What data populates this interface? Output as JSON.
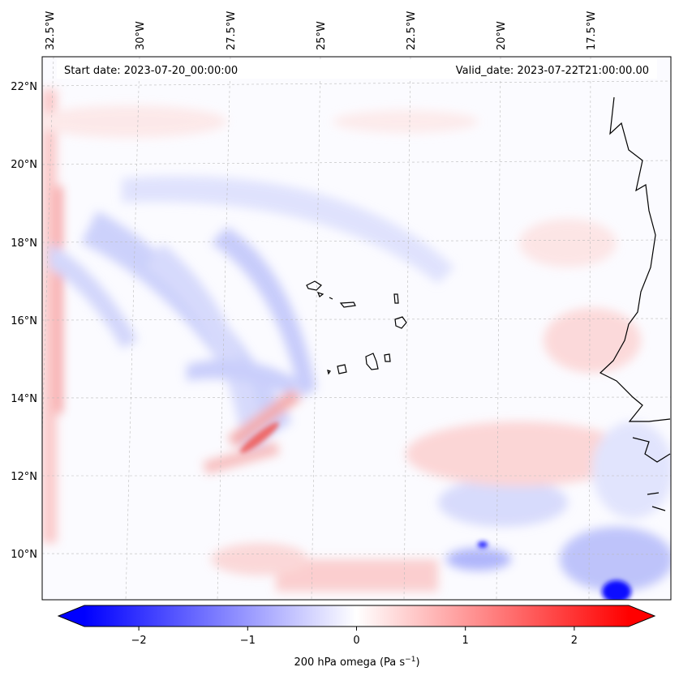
{
  "map": {
    "variable_label": "200 hPa omega (Pa s",
    "units_superscript": "−1",
    "units_close": ")",
    "start_date": "Start date: 2023-07-20_00:00:00",
    "valid_date": "Valid_date: 2023-07-22T21:00:00.00",
    "longitude_labels": [
      "32.5°W",
      "30°W",
      "27.5°W",
      "25°W",
      "22.5°W",
      "20°W",
      "17.5°W"
    ],
    "latitude_labels": [
      "22°N",
      "20°N",
      "18°N",
      "16°N",
      "14°N",
      "12°N",
      "10°N"
    ],
    "colorbar_ticks": [
      "−2",
      "−1",
      "0",
      "1",
      "2"
    ],
    "colorbar_values": [
      -2,
      -1,
      0,
      1,
      2
    ],
    "colorbar_range": [
      -2.5,
      2.5
    ],
    "colormap": {
      "negative": "#0000ff",
      "zero": "#ffffff",
      "positive": "#ff0000"
    },
    "coastline_color": "#000000",
    "gridline_color": "#b0b0b0",
    "regions": [
      "Cape Verde Islands",
      "West African coast"
    ]
  }
}
